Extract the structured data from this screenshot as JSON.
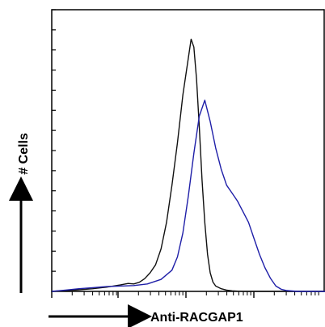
{
  "chart_data": {
    "type": "line",
    "title": "",
    "xlabel": "Anti-RACGAP1",
    "ylabel": "# Cells",
    "x_scale": "log",
    "x_ticks": [],
    "y_ticks": [],
    "xlim": [
      0,
      1
    ],
    "ylim": [
      0,
      1
    ],
    "grid": false,
    "legend": "none",
    "series": [
      {
        "color": "#111111",
        "x": [
          0.0,
          0.05,
          0.1,
          0.15,
          0.2,
          0.25,
          0.28,
          0.3,
          0.32,
          0.34,
          0.36,
          0.38,
          0.4,
          0.42,
          0.44,
          0.46,
          0.48,
          0.5,
          0.51,
          0.52,
          0.53,
          0.54,
          0.55,
          0.56,
          0.57,
          0.58,
          0.59,
          0.6,
          0.62,
          0.64,
          0.66,
          0.68,
          0.7,
          0.75,
          0.8,
          0.9,
          1.0
        ],
        "values": [
          0.0,
          0.003,
          0.006,
          0.01,
          0.016,
          0.024,
          0.03,
          0.028,
          0.034,
          0.048,
          0.07,
          0.1,
          0.16,
          0.26,
          0.4,
          0.56,
          0.74,
          0.88,
          0.95,
          0.92,
          0.8,
          0.62,
          0.42,
          0.26,
          0.14,
          0.07,
          0.035,
          0.02,
          0.01,
          0.005,
          0.002,
          0.001,
          0.0,
          0.0,
          0.0,
          0.0,
          0.0
        ]
      },
      {
        "color": "#1f1fa8",
        "x": [
          0.0,
          0.05,
          0.1,
          0.15,
          0.2,
          0.25,
          0.3,
          0.35,
          0.4,
          0.44,
          0.46,
          0.48,
          0.5,
          0.52,
          0.54,
          0.56,
          0.58,
          0.6,
          0.62,
          0.64,
          0.66,
          0.68,
          0.7,
          0.72,
          0.74,
          0.76,
          0.78,
          0.8,
          0.82,
          0.84,
          0.86,
          0.9,
          0.95,
          1.0
        ],
        "values": [
          0.0,
          0.005,
          0.01,
          0.014,
          0.018,
          0.02,
          0.022,
          0.028,
          0.045,
          0.08,
          0.13,
          0.22,
          0.36,
          0.52,
          0.66,
          0.72,
          0.64,
          0.54,
          0.46,
          0.4,
          0.37,
          0.34,
          0.3,
          0.26,
          0.2,
          0.14,
          0.09,
          0.05,
          0.02,
          0.008,
          0.003,
          0.0,
          0.0,
          0.0
        ]
      }
    ]
  }
}
